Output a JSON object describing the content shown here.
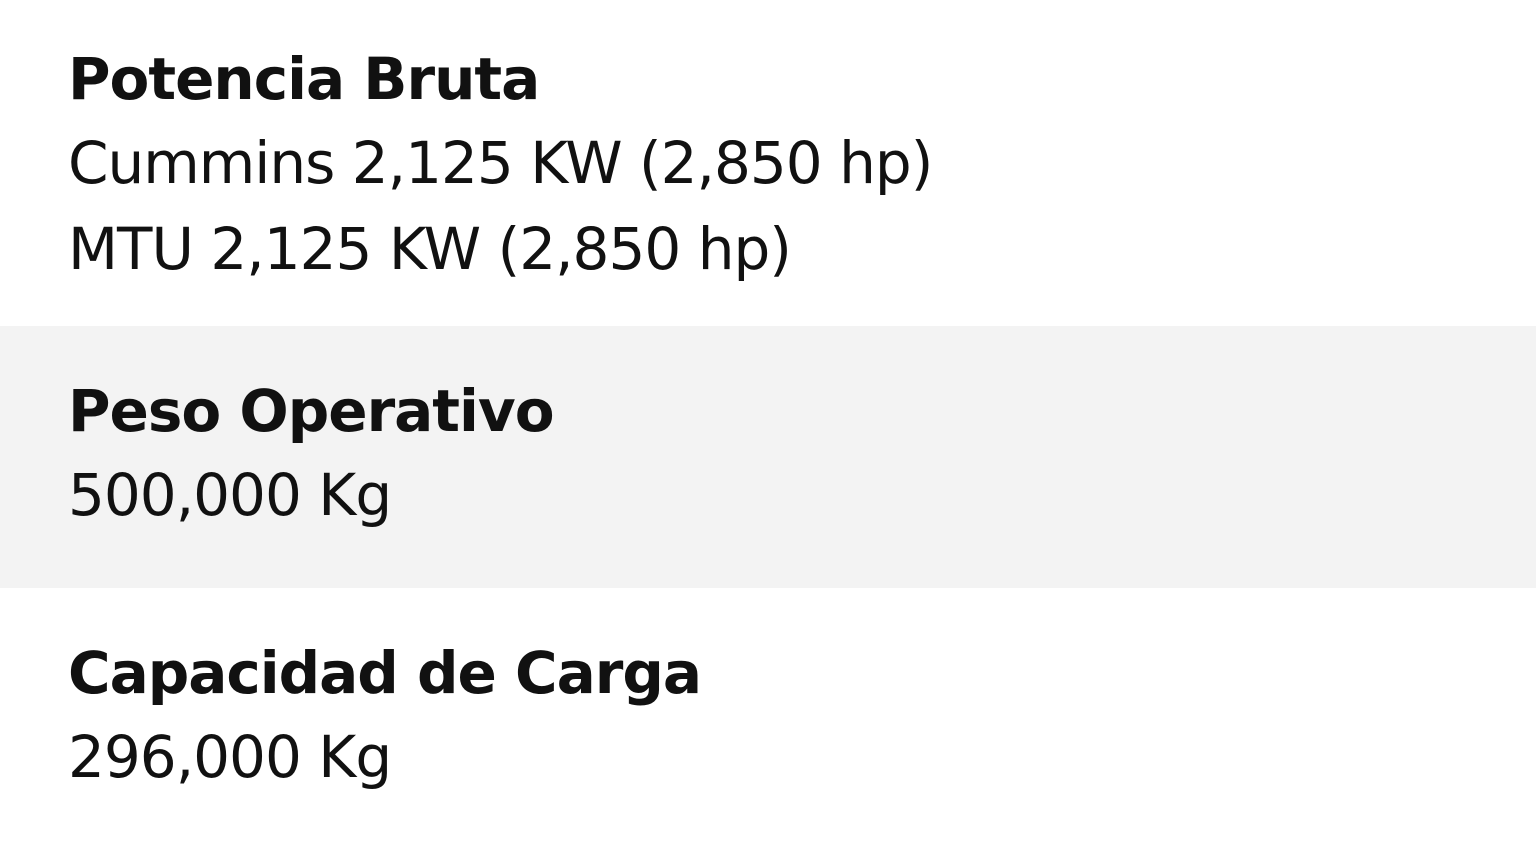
{
  "specs": [
    {
      "label": "Potencia Bruta",
      "values": [
        "Cummins 2,125 KW (2,850 hp)",
        "MTU 2,125 KW (2,850 hp)"
      ]
    },
    {
      "label": "Peso Operativo",
      "values": [
        "500,000 Kg"
      ]
    },
    {
      "label": "Capacidad de Carga",
      "values": [
        "296,000 Kg"
      ]
    }
  ],
  "colors": {
    "text": "#111111",
    "row_shade": "#f3f3f3",
    "background": "#ffffff"
  }
}
